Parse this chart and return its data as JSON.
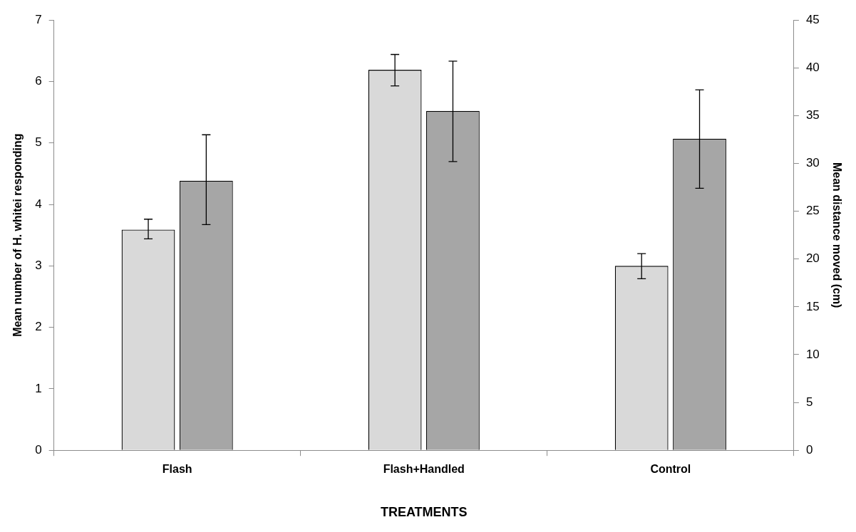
{
  "chart_data": {
    "type": "bar",
    "xlabel": "TREATMENTS",
    "ylabel": "Mean number of H. whitei responding",
    "y2label": "Mean distance moved (cm)",
    "categories": [
      "Flash",
      "Flash+Handled",
      "Control"
    ],
    "series": [
      {
        "color": "#d9d9d9",
        "values": [
          3.59,
          6.19,
          3.0
        ],
        "errors": [
          [
            3.44,
            3.76
          ],
          [
            5.93,
            6.44
          ],
          [
            2.79,
            3.2
          ]
        ]
      },
      {
        "color": "#a6a6a6",
        "axis": "y2",
        "values": [
          28.2,
          35.5,
          32.6
        ],
        "errors": [
          [
            23.6,
            33.0
          ],
          [
            30.2,
            40.7
          ],
          [
            27.4,
            37.7
          ]
        ]
      }
    ],
    "ylim": [
      0,
      7
    ],
    "yticks": [
      0,
      1,
      2,
      3,
      4,
      5,
      6,
      7
    ],
    "y2lim": [
      0,
      45
    ],
    "y2ticks": [
      0,
      5,
      10,
      15,
      20,
      25,
      30,
      35,
      40,
      45
    ],
    "grid": false,
    "legend": false
  }
}
